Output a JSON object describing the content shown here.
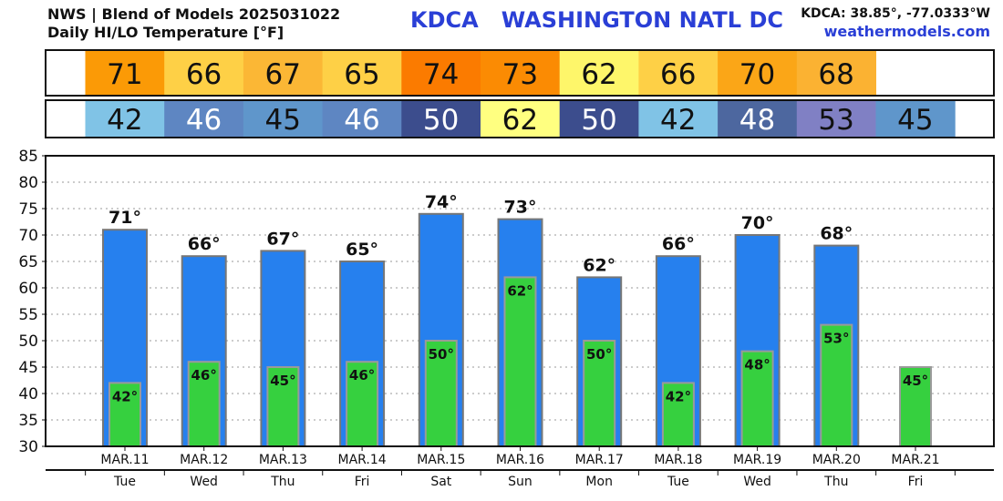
{
  "header": {
    "line1": "NWS | Blend of Models 2025031022",
    "line2": "Daily HI/LO Temperature [°F]",
    "station": "KDCA   WASHINGTON NATL DC",
    "coords": "KDCA: 38.85°, -77.0333°W",
    "website": "weathermodels.com"
  },
  "colors": {
    "hi_bar": "#2680ee",
    "lo_bar": "#36d03f",
    "bar_border": "#777777",
    "grid": "#999999"
  },
  "strips": {
    "hi": [
      {
        "value": "71",
        "color": "#fb9a06"
      },
      {
        "value": "66",
        "color": "#fed046"
      },
      {
        "value": "67",
        "color": "#fbb735"
      },
      {
        "value": "65",
        "color": "#fed046"
      },
      {
        "value": "74",
        "color": "#fb7b00"
      },
      {
        "value": "73",
        "color": "#fb8b03"
      },
      {
        "value": "62",
        "color": "#fef66a"
      },
      {
        "value": "66",
        "color": "#fed046"
      },
      {
        "value": "70",
        "color": "#fba617"
      },
      {
        "value": "68",
        "color": "#fbb232"
      }
    ],
    "lo": [
      {
        "value": "42",
        "color": "#80c3e6",
        "text_color": "#111111"
      },
      {
        "value": "46",
        "color": "#5e86c2",
        "text_color": "#ffffff"
      },
      {
        "value": "45",
        "color": "#5f96cb",
        "text_color": "#111111"
      },
      {
        "value": "46",
        "color": "#5e86c2",
        "text_color": "#ffffff"
      },
      {
        "value": "50",
        "color": "#3c4d8d",
        "text_color": "#ffffff"
      },
      {
        "value": "62",
        "color": "#ffff80",
        "text_color": "#111111"
      },
      {
        "value": "50",
        "color": "#3c4d8d",
        "text_color": "#ffffff"
      },
      {
        "value": "42",
        "color": "#80c3e6",
        "text_color": "#111111"
      },
      {
        "value": "48",
        "color": "#4d679f",
        "text_color": "#ffffff"
      },
      {
        "value": "53",
        "color": "#8080c4",
        "text_color": "#111111"
      },
      {
        "value": "45",
        "color": "#5f96cb",
        "text_color": "#111111"
      }
    ]
  },
  "chart_data": {
    "type": "bar",
    "title": "Daily HI/LO Temperature [°F]",
    "ylim": [
      30,
      85
    ],
    "yticks": [
      30,
      35,
      40,
      45,
      50,
      55,
      60,
      65,
      70,
      75,
      80,
      85
    ],
    "grid": true,
    "categories": [
      "MAR.11",
      "MAR.12",
      "MAR.13",
      "MAR.14",
      "MAR.15",
      "MAR.16",
      "MAR.17",
      "MAR.18",
      "MAR.19",
      "MAR.20",
      "MAR.21"
    ],
    "weekdays": [
      "Tue",
      "Wed",
      "Thu",
      "Fri",
      "Sat",
      "Sun",
      "Mon",
      "Tue",
      "Wed",
      "Thu",
      "Fri"
    ],
    "series": [
      {
        "name": "HI",
        "values": [
          71,
          66,
          67,
          65,
          74,
          73,
          62,
          66,
          70,
          68,
          null
        ]
      },
      {
        "name": "LO",
        "values": [
          42,
          46,
          45,
          46,
          50,
          62,
          50,
          42,
          48,
          53,
          45
        ]
      }
    ],
    "hi_labels": [
      "71°",
      "66°",
      "67°",
      "65°",
      "74°",
      "73°",
      "62°",
      "66°",
      "70°",
      "68°",
      ""
    ],
    "lo_labels": [
      "42°",
      "46°",
      "45°",
      "46°",
      "50°",
      "62°",
      "50°",
      "42°",
      "48°",
      "53°",
      "45°"
    ]
  }
}
